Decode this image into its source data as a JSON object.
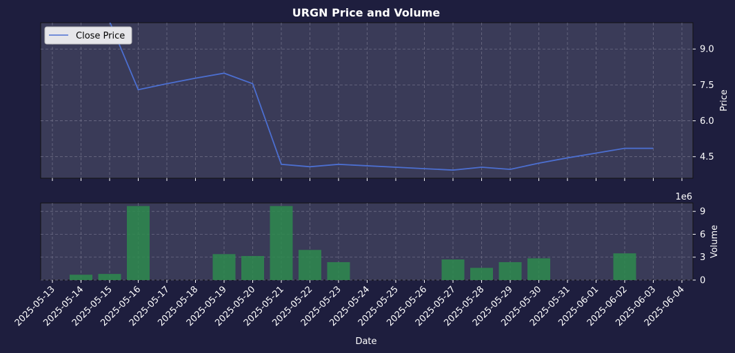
{
  "chart_data": {
    "title": "URGN Price and Volume",
    "dates": [
      "2025-05-13",
      "2025-05-14",
      "2025-05-15",
      "2025-05-16",
      "2025-05-17",
      "2025-05-18",
      "2025-05-19",
      "2025-05-20",
      "2025-05-21",
      "2025-05-22",
      "2025-05-23",
      "2025-05-24",
      "2025-05-25",
      "2025-05-26",
      "2025-05-27",
      "2025-05-28",
      "2025-05-29",
      "2025-05-30",
      "2025-05-31",
      "2025-06-01",
      "2025-06-02",
      "2025-06-03",
      "2025-06-04"
    ],
    "xlabel": "Date",
    "price": {
      "type": "line",
      "series_name": "Close Price",
      "ylabel": "Price",
      "yticks": [
        4.5,
        6.0,
        7.5,
        9.0
      ],
      "ylim": [
        3.6,
        10.1
      ],
      "color": "#4c6fd1",
      "points": [
        {
          "x": "2025-05-15",
          "y": 10.15
        },
        {
          "x": "2025-05-16",
          "y": 7.3
        },
        {
          "x": "2025-05-17",
          "y": 7.55
        },
        {
          "x": "2025-05-18",
          "y": 7.78
        },
        {
          "x": "2025-05-19",
          "y": 7.99
        },
        {
          "x": "2025-05-20",
          "y": 7.55
        },
        {
          "x": "2025-05-21",
          "y": 4.18
        },
        {
          "x": "2025-05-22",
          "y": 4.08
        },
        {
          "x": "2025-05-23",
          "y": 4.18
        },
        {
          "x": "2025-05-24",
          "y": 4.12
        },
        {
          "x": "2025-05-25",
          "y": 4.06
        },
        {
          "x": "2025-05-26",
          "y": 4.0
        },
        {
          "x": "2025-05-27",
          "y": 3.94
        },
        {
          "x": "2025-05-28",
          "y": 4.06
        },
        {
          "x": "2025-05-29",
          "y": 3.97
        },
        {
          "x": "2025-05-30",
          "y": 4.23
        },
        {
          "x": "2025-05-31",
          "y": 4.45
        },
        {
          "x": "2025-06-01",
          "y": 4.65
        },
        {
          "x": "2025-06-02",
          "y": 4.85
        },
        {
          "x": "2025-06-03",
          "y": 4.85
        }
      ]
    },
    "volume": {
      "type": "bar",
      "ylabel": "Volume",
      "scale_label": "1e6",
      "yticks": [
        0,
        3,
        6,
        9
      ],
      "ylim": [
        0,
        10.1
      ],
      "color": "#2e8b4e",
      "bars": [
        {
          "x": "2025-05-14",
          "y": 0.7
        },
        {
          "x": "2025-05-15",
          "y": 0.8
        },
        {
          "x": "2025-05-16",
          "y": 9.7
        },
        {
          "x": "2025-05-19",
          "y": 3.4
        },
        {
          "x": "2025-05-20",
          "y": 3.15
        },
        {
          "x": "2025-05-21",
          "y": 9.7
        },
        {
          "x": "2025-05-22",
          "y": 3.95
        },
        {
          "x": "2025-05-23",
          "y": 2.35
        },
        {
          "x": "2025-05-27",
          "y": 2.7
        },
        {
          "x": "2025-05-28",
          "y": 1.6
        },
        {
          "x": "2025-05-29",
          "y": 2.35
        },
        {
          "x": "2025-05-30",
          "y": 2.85
        },
        {
          "x": "2025-06-02",
          "y": 3.5
        }
      ]
    },
    "legend": {
      "position": "upper-left",
      "entries": [
        "Close Price"
      ]
    },
    "grid": true,
    "colors": {
      "background": "#1e1e3e",
      "plot_background": "#3a3b58",
      "grid": "#6e6e86"
    }
  }
}
